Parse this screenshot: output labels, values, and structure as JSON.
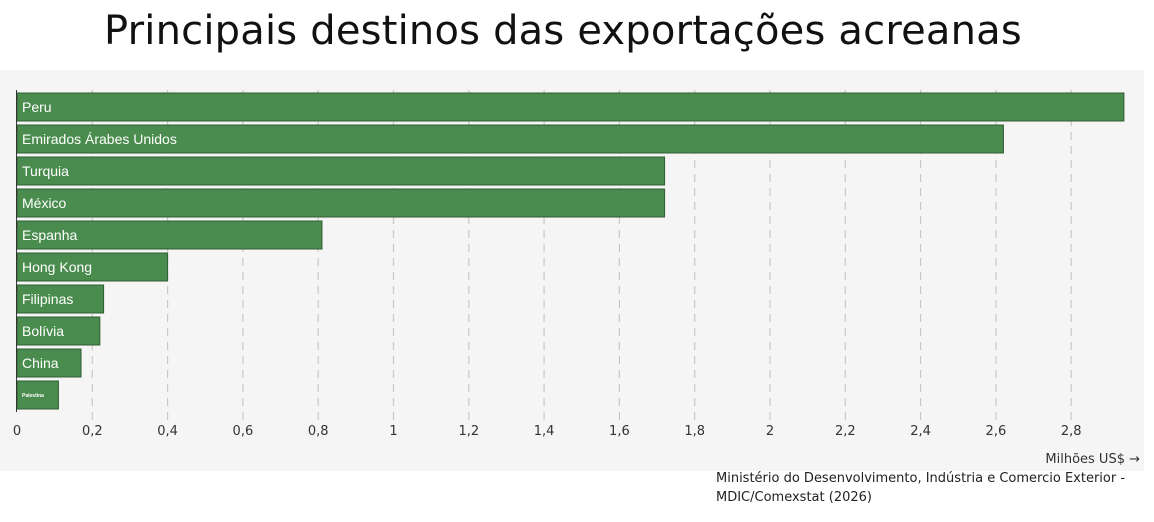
{
  "chart_data": {
    "type": "bar",
    "orientation": "horizontal",
    "title": "Principais destinos das exportações acreanas",
    "xlabel": "Milhões US$ →",
    "ylabel": "",
    "xlim": [
      0,
      2.94
    ],
    "grid": true,
    "ticks": [
      "0",
      "0,2",
      "0,4",
      "0,6",
      "0,8",
      "1",
      "1,2",
      "1,4",
      "1,6",
      "1,8",
      "2",
      "2,2",
      "2,4",
      "2,6",
      "2,8"
    ],
    "tick_values": [
      0,
      0.2,
      0.4,
      0.6,
      0.8,
      1.0,
      1.2,
      1.4,
      1.6,
      1.8,
      2.0,
      2.2,
      2.4,
      2.6,
      2.8
    ],
    "categories": [
      "Peru",
      "Emirados Árabes Unidos",
      "Turquia",
      "México",
      "Espanha",
      "Hong Kong",
      "Filipinas",
      "Bolívia",
      "China",
      "Palestina"
    ],
    "values": [
      2.94,
      2.62,
      1.72,
      1.72,
      0.81,
      0.4,
      0.23,
      0.22,
      0.17,
      0.11
    ],
    "bar_color": "#4a8c4e"
  },
  "source": "Ministério do Desenvolvimento, Indústria e Comercio Exterior - MDIC/Comexstat (2026)"
}
